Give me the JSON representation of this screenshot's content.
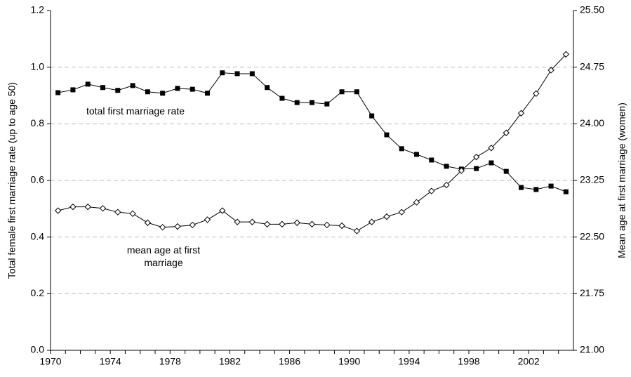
{
  "chart_data": {
    "type": "line",
    "xlabel": null,
    "ylabel": "Total female first marriage rate (up to age 50)",
    "y2label": "Mean age at first marriage (women)",
    "categories": [
      "1970",
      null,
      null,
      null,
      "1974",
      null,
      null,
      null,
      "1978",
      null,
      null,
      null,
      "1982",
      null,
      null,
      null,
      "1986",
      null,
      null,
      null,
      "1990",
      null,
      null,
      null,
      "1994",
      null,
      null,
      null,
      "1998",
      null,
      null,
      null,
      "2002",
      null,
      null
    ],
    "series": [
      {
        "name": "total first marriage rate",
        "color": "#000000",
        "marker": "square",
        "axis": "y",
        "values": [
          0.91,
          0.92,
          0.94,
          0.928,
          0.918,
          0.935,
          0.913,
          0.908,
          0.925,
          0.922,
          0.908,
          0.98,
          0.977,
          0.977,
          0.928,
          0.89,
          0.875,
          0.875,
          0.87,
          0.913,
          0.913,
          0.828,
          0.761,
          0.712,
          0.692,
          0.672,
          0.65,
          0.64,
          0.642,
          0.662,
          0.632,
          0.575,
          0.568,
          0.58,
          0.56
        ]
      },
      {
        "name": "mean age at first marriage",
        "color": "#000000",
        "marker": "diamond",
        "axis": "y2",
        "values": [
          22.85,
          22.9,
          22.9,
          22.88,
          22.83,
          22.81,
          22.69,
          22.63,
          22.64,
          22.66,
          22.73,
          22.85,
          22.7,
          22.7,
          22.67,
          22.67,
          22.69,
          22.67,
          22.66,
          22.65,
          22.58,
          22.7,
          22.77,
          22.83,
          22.96,
          23.11,
          23.19,
          23.38,
          23.56,
          23.68,
          23.88,
          24.14,
          24.4,
          24.71,
          24.92
        ]
      }
    ],
    "ylim": [
      0,
      1.2
    ],
    "yticks": [
      {
        "value": 0,
        "label": "0.0"
      },
      0.2,
      0.4,
      0.6,
      0.8,
      {
        "value": 1,
        "label": "1.0"
      },
      1.2
    ],
    "y2lim": [
      21,
      25.5
    ],
    "y2ticks": [
      {
        "value": 21,
        "label": "21.00"
      },
      {
        "value": 21.75,
        "label": "21.75"
      },
      {
        "value": 22.5,
        "label": "22.50"
      },
      {
        "value": 23.25,
        "label": "23.25"
      },
      {
        "value": 24,
        "label": "24.00"
      },
      {
        "value": 24.75,
        "label": "24.75"
      },
      {
        "value": 25.5,
        "label": "25.50"
      }
    ],
    "grid": true
  }
}
